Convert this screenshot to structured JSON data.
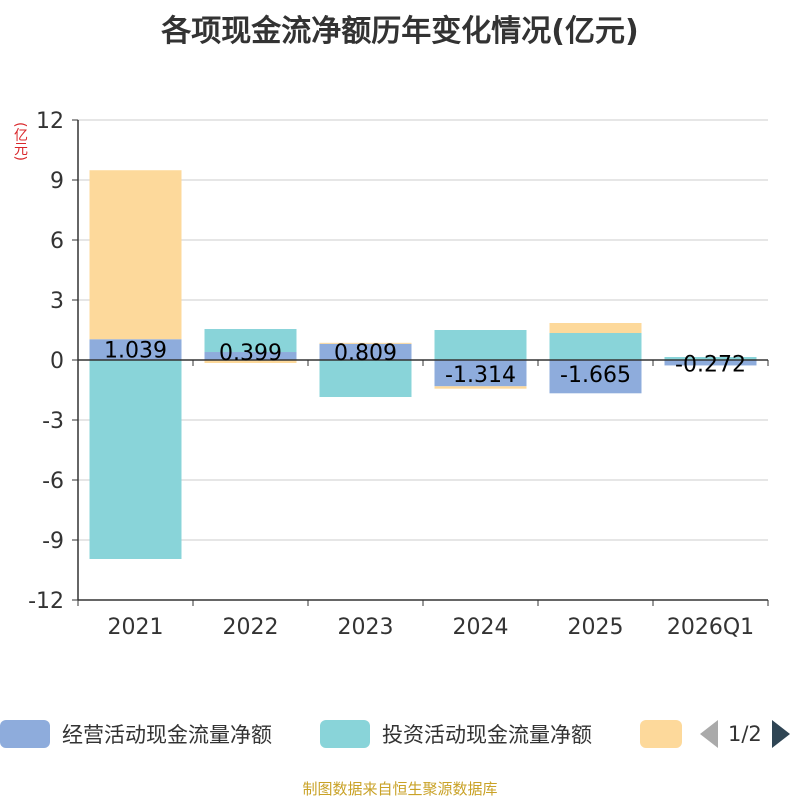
{
  "chart_data": {
    "type": "bar",
    "stacked": true,
    "title": "各项现金流净额历年变化情况(亿元)",
    "unit_label": "(亿元)",
    "categories": [
      "2021",
      "2022",
      "2023",
      "2024",
      "2025",
      "2026Q1"
    ],
    "ylim": [
      -12,
      12
    ],
    "yticks": [
      12,
      9,
      6,
      3,
      0,
      -3,
      -6,
      -9,
      -12
    ],
    "grid": true,
    "series": [
      {
        "name": "经营活动现金流量净额",
        "color": "#8eacdc",
        "values": [
          1.039,
          0.399,
          0.809,
          -1.314,
          -1.665,
          -0.272
        ],
        "data_labels": [
          "1.039",
          "0.399",
          "0.809",
          "-1.314",
          "-1.665",
          "-0.272"
        ]
      },
      {
        "name": "投资活动现金流量净额",
        "color": "#89d4d9",
        "values": [
          -9.95,
          1.15,
          -1.85,
          1.5,
          1.35,
          0.15
        ]
      },
      {
        "name": "",
        "color": "#fdd99b",
        "values": [
          8.45,
          -0.15,
          0.05,
          -0.12,
          0.5,
          0.0
        ]
      }
    ]
  },
  "legend": {
    "items": [
      "经营活动现金流量净额",
      "投资活动现金流量净额",
      ""
    ],
    "page": "1/2"
  },
  "footer": "制图数据来自恒生聚源数据库"
}
